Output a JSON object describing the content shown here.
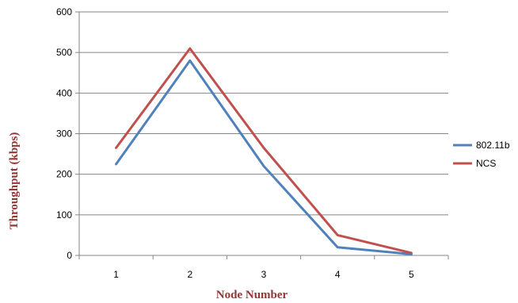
{
  "chart_data": {
    "type": "line",
    "x": [
      1,
      2,
      3,
      4,
      5
    ],
    "tick_labels_x": [
      "1",
      "2",
      "3",
      "4",
      "5"
    ],
    "tick_labels_y": [
      "0",
      "100",
      "200",
      "300",
      "400",
      "500",
      "600"
    ],
    "xlabel": "Node Number",
    "ylabel": "Throughput (kbps)",
    "ylim": [
      0,
      600
    ],
    "grid": true,
    "legend_position": "right",
    "series": [
      {
        "name": "802.11b",
        "color": "#4f81bd",
        "values": [
          225,
          480,
          220,
          20,
          3
        ]
      },
      {
        "name": "NCS",
        "color": "#c0504d",
        "values": [
          265,
          510,
          265,
          50,
          6
        ]
      }
    ],
    "axis_title_color": "#943634"
  }
}
